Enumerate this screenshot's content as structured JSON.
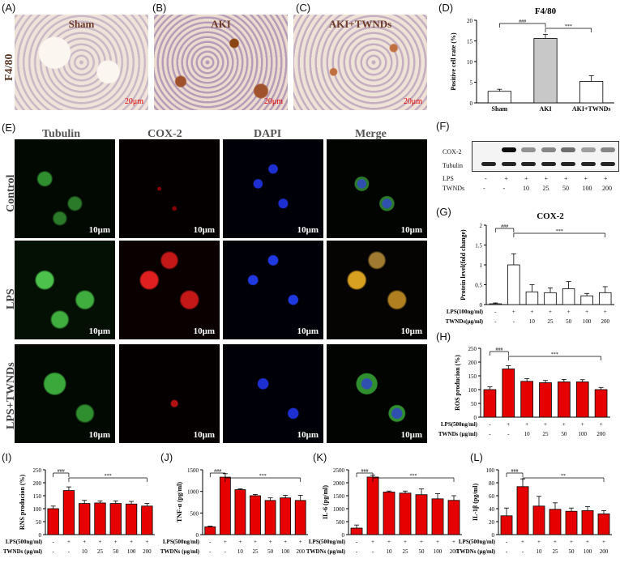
{
  "panel_letters": {
    "A": "(A)",
    "B": "(B)",
    "C": "(C)",
    "D": "(D)",
    "E": "(E)",
    "F": "(F)",
    "G": "(G)",
    "H": "(H)",
    "I": "(I)",
    "J": "(J)",
    "K": "(K)",
    "L": "(L)"
  },
  "ihc": {
    "row_label": "F4/80",
    "panels": [
      "Sham",
      "AKI",
      "AKI+TWNDs"
    ],
    "scale": "20μm"
  },
  "fluo": {
    "columns": [
      "Tubulin",
      "COX-2",
      "DAPI",
      "Merge"
    ],
    "rows": [
      "Control",
      "LPS",
      "LPS+TWNDs"
    ],
    "scale": "10μm"
  },
  "western": {
    "bands": [
      "COX-2",
      "Tubulin"
    ],
    "lps_label": "LPS",
    "twnd_label": "TWNDs",
    "lps_row": [
      "-",
      "+",
      "+",
      "+",
      "+",
      "+",
      "+"
    ],
    "twnd_row": [
      "-",
      "-",
      "10",
      "25",
      "50",
      "100",
      "200"
    ]
  },
  "chart_data": [
    {
      "id": "D",
      "type": "bar",
      "title": "F4/80",
      "ylabel": "Positive cell rate (%)",
      "ylim": [
        0,
        20
      ],
      "yticks": [
        0,
        5,
        10,
        15,
        20
      ],
      "categories": [
        "Sham",
        "AKI",
        "AKI+TWNDs"
      ],
      "values": [
        2.8,
        15.6,
        5.2
      ],
      "errors": [
        0.5,
        1.0,
        1.4
      ],
      "colors": [
        "#ffffff",
        "#c8c8c8",
        "#ffffff"
      ],
      "sig": [
        {
          "from": 0,
          "to": 1,
          "text": "###"
        },
        {
          "from": 1,
          "to": 2,
          "text": "***"
        }
      ]
    },
    {
      "id": "G",
      "type": "bar",
      "title": "COX-2",
      "ylabel": "Protein level(fold change)",
      "ylim": [
        0,
        2.0
      ],
      "yticks": [
        0.0,
        0.5,
        1.0,
        1.5,
        2.0
      ],
      "categories": [
        "",
        "",
        "",
        "",
        "",
        "",
        ""
      ],
      "values": [
        0.02,
        1.0,
        0.32,
        0.3,
        0.4,
        0.22,
        0.3
      ],
      "errors": [
        0.02,
        0.28,
        0.18,
        0.12,
        0.18,
        0.06,
        0.15
      ],
      "colors": [
        "#ffffff",
        "#ffffff",
        "#ffffff",
        "#ffffff",
        "#ffffff",
        "#ffffff",
        "#ffffff"
      ],
      "row1_label": "LPS(100ng/ml)",
      "row1": [
        "-",
        "+",
        "+",
        "+",
        "+",
        "+",
        "+"
      ],
      "row2_label": "TWNDs(μg/ml)",
      "row2": [
        "-",
        "-",
        "10",
        "25",
        "50",
        "100",
        "200"
      ],
      "sig": [
        {
          "from": 0,
          "to": 1,
          "text": "###"
        },
        {
          "from": 1,
          "to": 6,
          "text": "***"
        }
      ]
    },
    {
      "id": "H",
      "type": "bar",
      "title": "",
      "ylabel": "ROS producion (%)",
      "ylim": [
        0,
        250
      ],
      "yticks": [
        0,
        50,
        100,
        150,
        200,
        250
      ],
      "categories": [
        "",
        "",
        "",
        "",
        "",
        "",
        ""
      ],
      "values": [
        100,
        175,
        130,
        125,
        128,
        128,
        100
      ],
      "errors": [
        10,
        12,
        10,
        8,
        9,
        8,
        8
      ],
      "colors": [
        "#e60000",
        "#e60000",
        "#e60000",
        "#e60000",
        "#e60000",
        "#e60000",
        "#e60000"
      ],
      "row1_label": "LPS(500ng/ml)",
      "row1": [
        "-",
        "+",
        "+",
        "+",
        "+",
        "+",
        "+"
      ],
      "row2_label": "TWNDs (μg/ml)",
      "row2": [
        "-",
        "-",
        "10",
        "25",
        "50",
        "100",
        "200"
      ],
      "sig": [
        {
          "from": 0,
          "to": 1,
          "text": "###"
        },
        {
          "from": 1,
          "to": 6,
          "text": "***"
        }
      ]
    },
    {
      "id": "I",
      "type": "bar",
      "title": "",
      "ylabel": "RNS producion (%)",
      "ylim": [
        0,
        250
      ],
      "yticks": [
        0,
        50,
        100,
        150,
        200,
        250
      ],
      "categories": [
        "",
        "",
        "",
        "",
        "",
        "",
        ""
      ],
      "values": [
        100,
        170,
        120,
        122,
        120,
        118,
        110
      ],
      "errors": [
        10,
        14,
        12,
        8,
        10,
        10,
        10
      ],
      "colors": [
        "#e60000",
        "#e60000",
        "#e60000",
        "#e60000",
        "#e60000",
        "#e60000",
        "#e60000"
      ],
      "row1_label": "LPS(500ng/ml)",
      "row1": [
        "-",
        "+",
        "+",
        "+",
        "+",
        "+",
        "+"
      ],
      "row2_label": "TWNDs (μg/ml)",
      "row2": [
        "-",
        "-",
        "10",
        "25",
        "50",
        "100",
        "200"
      ],
      "sig": [
        {
          "from": 0,
          "to": 1,
          "text": "###"
        },
        {
          "from": 1,
          "to": 6,
          "text": "***"
        }
      ]
    },
    {
      "id": "J",
      "type": "bar",
      "title": "",
      "ylabel": "TNF-α (pg/ml)",
      "ylim": [
        0,
        1500
      ],
      "yticks": [
        0,
        500,
        1000,
        1500
      ],
      "categories": [
        "",
        "",
        "",
        "",
        "",
        "",
        ""
      ],
      "values": [
        180,
        1330,
        1040,
        900,
        790,
        850,
        790
      ],
      "errors": [
        15,
        80,
        20,
        30,
        60,
        60,
        120
      ],
      "colors": [
        "#e60000",
        "#e60000",
        "#e60000",
        "#e60000",
        "#e60000",
        "#e60000",
        "#e60000"
      ],
      "row1_label": "LPS(500ng/ml)",
      "row1": [
        "-",
        "+",
        "+",
        "+",
        "+",
        "+",
        "+"
      ],
      "row2_label": "TWDNs (μg/ml)",
      "row2": [
        "-",
        "-",
        "10",
        "25",
        "50",
        "100",
        "200"
      ],
      "sig": [
        {
          "from": 0,
          "to": 1,
          "text": "###"
        },
        {
          "from": 1,
          "to": 6,
          "text": "***"
        }
      ]
    },
    {
      "id": "K",
      "type": "bar",
      "title": "",
      "ylabel": "IL-6 (pg/ml)",
      "ylim": [
        0,
        2500
      ],
      "yticks": [
        0,
        500,
        1000,
        1500,
        2000,
        2500
      ],
      "categories": [
        "",
        "",
        "",
        "",
        "",
        "",
        ""
      ],
      "values": [
        250,
        2220,
        1640,
        1600,
        1540,
        1380,
        1320
      ],
      "errors": [
        120,
        70,
        40,
        80,
        220,
        200,
        180
      ],
      "colors": [
        "#e60000",
        "#e60000",
        "#e60000",
        "#e60000",
        "#e60000",
        "#e60000",
        "#e60000"
      ],
      "row1_label": "LPS(500ng/ml)",
      "row1": [
        "-",
        "+",
        "+",
        "+",
        "+",
        "+",
        "+"
      ],
      "row2_label": "TWDNs (μg/ml)",
      "row2": [
        "-",
        "-",
        "10",
        "25",
        "50",
        "100",
        "200"
      ],
      "sig": [
        {
          "from": 0,
          "to": 1,
          "text": "###"
        },
        {
          "from": 1,
          "to": 6,
          "text": "***"
        }
      ]
    },
    {
      "id": "L",
      "type": "bar",
      "title": "",
      "ylabel": "IL-1β (pg/ml)",
      "ylim": [
        0,
        100
      ],
      "yticks": [
        0,
        20,
        40,
        60,
        80,
        100
      ],
      "categories": [
        "",
        "",
        "",
        "",
        "",
        "",
        ""
      ],
      "values": [
        29,
        74,
        44,
        39,
        36,
        37,
        32
      ],
      "errors": [
        12,
        12,
        15,
        10,
        5,
        6,
        5
      ],
      "colors": [
        "#e60000",
        "#e60000",
        "#e60000",
        "#e60000",
        "#e60000",
        "#e60000",
        "#e60000"
      ],
      "row1_label": "LPS(500ng/ml)",
      "row1": [
        "-",
        "+",
        "+",
        "+",
        "+",
        "+",
        "+"
      ],
      "row2_label": "TWDNs (μg/ml)",
      "row2": [
        "-",
        "-",
        "10",
        "25",
        "50",
        "100",
        "200"
      ],
      "sig": [
        {
          "from": 0,
          "to": 1,
          "text": "###"
        },
        {
          "from": 1,
          "to": 6,
          "text": "**"
        }
      ]
    }
  ]
}
